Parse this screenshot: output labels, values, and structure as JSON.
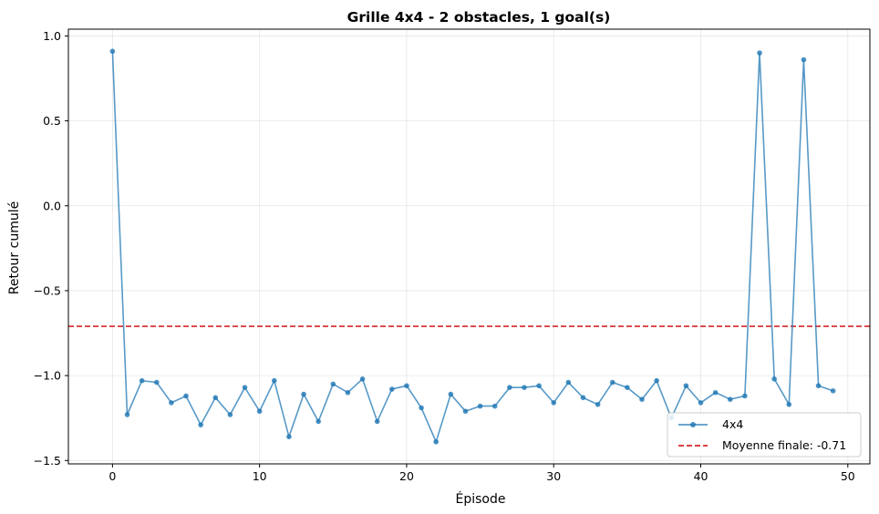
{
  "chart_data": {
    "type": "line",
    "title": "Grille 4x4 - 2 obstacles, 1 goal(s)",
    "xlabel": "Épisode",
    "ylabel": "Retour cumulé",
    "xlim": [
      -3,
      51.5
    ],
    "ylim": [
      -1.52,
      1.04
    ],
    "xticks": [
      0,
      10,
      20,
      30,
      40,
      50
    ],
    "yticks": [
      -1.5,
      -1.0,
      -0.5,
      0.0,
      0.5,
      1.0
    ],
    "xtick_labels": [
      "0",
      "10",
      "20",
      "30",
      "40",
      "50"
    ],
    "ytick_labels": [
      "−1.5",
      "−1.0",
      "−0.5",
      "0.0",
      "0.5",
      "1.0"
    ],
    "grid": true,
    "legend_position": "lower-right",
    "series": [
      {
        "name": "4x4",
        "color": "#1f77b4",
        "x": [
          0,
          1,
          2,
          3,
          4,
          5,
          6,
          7,
          8,
          9,
          10,
          11,
          12,
          13,
          14,
          15,
          16,
          17,
          18,
          19,
          20,
          21,
          22,
          23,
          24,
          25,
          26,
          27,
          28,
          29,
          30,
          31,
          32,
          33,
          34,
          35,
          36,
          37,
          38,
          39,
          40,
          41,
          42,
          43,
          44,
          45,
          46,
          47,
          48,
          49
        ],
        "y": [
          0.91,
          -1.23,
          -1.03,
          -1.04,
          -1.16,
          -1.12,
          -1.29,
          -1.13,
          -1.23,
          -1.07,
          -1.21,
          -1.03,
          -1.36,
          -1.11,
          -1.27,
          -1.05,
          -1.1,
          -1.02,
          -1.27,
          -1.08,
          -1.06,
          -1.19,
          -1.39,
          -1.11,
          -1.21,
          -1.18,
          -1.18,
          -1.07,
          -1.07,
          -1.06,
          -1.16,
          -1.04,
          -1.13,
          -1.17,
          -1.04,
          -1.07,
          -1.14,
          -1.03,
          -1.25,
          -1.06,
          -1.16,
          -1.1,
          -1.14,
          -1.12,
          0.9,
          -1.02,
          -1.17,
          0.86,
          -1.06,
          -1.09
        ]
      }
    ],
    "hline": {
      "name": "Moyenne finale: -0.71",
      "value": -0.71,
      "color": "#d62728",
      "style": "dashed"
    }
  }
}
